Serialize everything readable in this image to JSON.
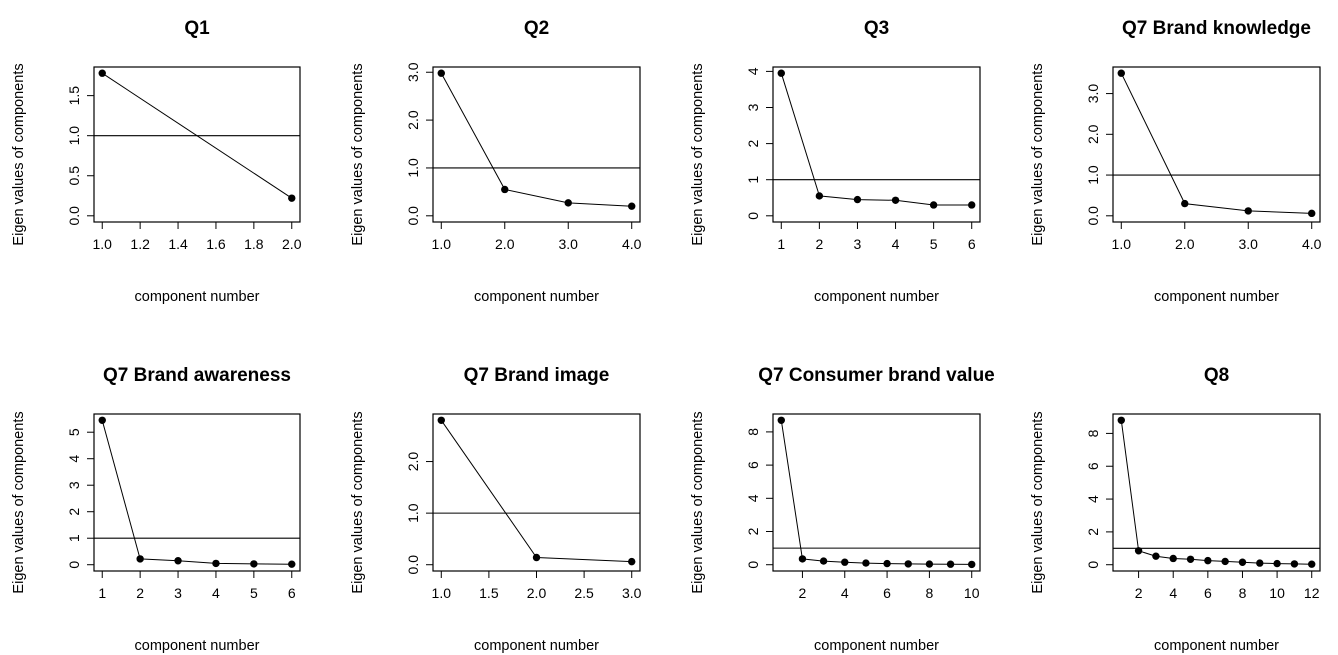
{
  "chart_data": [
    {
      "type": "line",
      "title": "Q1",
      "xlabel": "component number",
      "ylabel": "Eigen values of components",
      "x": [
        1,
        2
      ],
      "y": [
        1.78,
        0.22
      ],
      "xlim": [
        1,
        2
      ],
      "ylim": [
        0,
        1.78
      ],
      "xticks": [
        "1.0",
        "1.2",
        "1.4",
        "1.6",
        "1.8",
        "2.0"
      ],
      "yticks": [
        "0.0",
        "0.5",
        "1.0",
        "1.5"
      ],
      "hline": 1
    },
    {
      "type": "line",
      "title": "Q2",
      "xlabel": "component number",
      "ylabel": "Eigen values of components",
      "x": [
        1,
        2,
        3,
        4
      ],
      "y": [
        2.98,
        0.55,
        0.27,
        0.2
      ],
      "xlim": [
        1,
        4
      ],
      "ylim": [
        0,
        2.98
      ],
      "xticks": [
        "1.0",
        "2.0",
        "3.0",
        "4.0"
      ],
      "yticks": [
        "0.0",
        "1.0",
        "2.0",
        "3.0"
      ],
      "hline": 1
    },
    {
      "type": "line",
      "title": "Q3",
      "xlabel": "component number",
      "ylabel": "Eigen values of components",
      "x": [
        1,
        2,
        3,
        4,
        5,
        6
      ],
      "y": [
        3.95,
        0.55,
        0.45,
        0.43,
        0.3,
        0.3
      ],
      "xlim": [
        1,
        6
      ],
      "ylim": [
        0,
        3.95
      ],
      "xticks": [
        "1",
        "2",
        "3",
        "4",
        "5",
        "6"
      ],
      "yticks": [
        "0",
        "1",
        "2",
        "3",
        "4"
      ],
      "hline": 1
    },
    {
      "type": "line",
      "title": "Q7 Brand knowledge",
      "xlabel": "component number",
      "ylabel": "Eigen values of components",
      "x": [
        1,
        2,
        3,
        4
      ],
      "y": [
        3.5,
        0.3,
        0.12,
        0.06
      ],
      "xlim": [
        1,
        4
      ],
      "ylim": [
        0,
        3.5
      ],
      "xticks": [
        "1.0",
        "2.0",
        "3.0",
        "4.0"
      ],
      "yticks": [
        "0.0",
        "1.0",
        "2.0",
        "3.0"
      ],
      "hline": 1
    },
    {
      "type": "line",
      "title": "Q7 Brand awareness",
      "xlabel": "component number",
      "ylabel": "Eigen values of components",
      "x": [
        1,
        2,
        3,
        4,
        5,
        6
      ],
      "y": [
        5.45,
        0.22,
        0.15,
        0.05,
        0.03,
        0.02
      ],
      "xlim": [
        1,
        6
      ],
      "ylim": [
        0,
        5.45
      ],
      "xticks": [
        "1",
        "2",
        "3",
        "4",
        "5",
        "6"
      ],
      "yticks": [
        "0",
        "1",
        "2",
        "3",
        "4",
        "5"
      ],
      "hline": 1
    },
    {
      "type": "line",
      "title": "Q7 Brand image",
      "xlabel": "component number",
      "ylabel": "Eigen values of components",
      "x": [
        1,
        2,
        3
      ],
      "y": [
        2.8,
        0.14,
        0.06
      ],
      "xlim": [
        1,
        3
      ],
      "ylim": [
        0,
        2.8
      ],
      "xticks": [
        "1.0",
        "1.5",
        "2.0",
        "2.5",
        "3.0"
      ],
      "yticks": [
        "0.0",
        "1.0",
        "2.0"
      ],
      "hline": 1
    },
    {
      "type": "line",
      "title": "Q7 Consumer brand value",
      "xlabel": "component number",
      "ylabel": "Eigen values of components",
      "x": [
        1,
        2,
        3,
        4,
        5,
        6,
        7,
        8,
        9,
        10
      ],
      "y": [
        8.7,
        0.35,
        0.22,
        0.15,
        0.1,
        0.07,
        0.05,
        0.04,
        0.03,
        0.02
      ],
      "xlim": [
        1,
        10
      ],
      "ylim": [
        0,
        8.7
      ],
      "xticks": [
        "2",
        "4",
        "6",
        "8",
        "10"
      ],
      "yticks": [
        "0",
        "2",
        "4",
        "6",
        "8"
      ],
      "hline": 1
    },
    {
      "type": "line",
      "title": "Q8",
      "xlabel": "component number",
      "ylabel": "Eigen values of components",
      "x": [
        1,
        2,
        3,
        4,
        5,
        6,
        7,
        8,
        9,
        10,
        11,
        12
      ],
      "y": [
        8.8,
        0.85,
        0.52,
        0.38,
        0.33,
        0.25,
        0.2,
        0.15,
        0.1,
        0.07,
        0.05,
        0.03
      ],
      "xlim": [
        1,
        12
      ],
      "ylim": [
        0,
        8.8
      ],
      "xticks": [
        "2",
        "4",
        "6",
        "8",
        "10",
        "12"
      ],
      "yticks": [
        "0",
        "2",
        "4",
        "6",
        "8"
      ],
      "hline": 1
    }
  ]
}
